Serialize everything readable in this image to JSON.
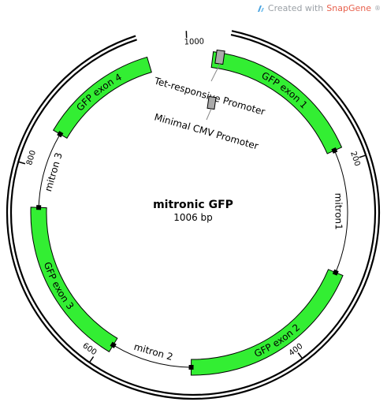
{
  "watermark": {
    "prefix": "Created with",
    "brand": "SnapGene",
    "suffix": "®",
    "icon": "snapgene-logo-icon"
  },
  "plasmid": {
    "name": "mitronic GFP",
    "length_label": "1006 bp",
    "length": 1006
  },
  "ticks": [
    {
      "bp": 200,
      "label": "200"
    },
    {
      "bp": 400,
      "label": "400"
    },
    {
      "bp": 600,
      "label": "600"
    },
    {
      "bp": 800,
      "label": "800"
    },
    {
      "bp": 1000,
      "label": "1000"
    }
  ],
  "exons": [
    {
      "label": "GFP exon 1",
      "start": 20,
      "end": 185,
      "color": "#33ee33"
    },
    {
      "label": "GFP exon 2",
      "start": 315,
      "end": 505,
      "color": "#33ee33"
    },
    {
      "label": "GFP exon 3",
      "start": 590,
      "end": 760,
      "color": "#33ee33"
    },
    {
      "label": "GFP exon 4",
      "start": 840,
      "end": 960,
      "color": "#33ee33"
    }
  ],
  "introns": [
    {
      "label": "mitron1",
      "start": 185,
      "end": 315
    },
    {
      "label": "mitron 2",
      "start": 505,
      "end": 590
    },
    {
      "label": "mitron 3",
      "start": 760,
      "end": 840
    }
  ],
  "promoters": [
    {
      "label": "Tet-responsive Promoter",
      "color": "#aaaaaa"
    },
    {
      "label": "Minimal CMV Promoter",
      "color": "#aaaaaa"
    }
  ]
}
